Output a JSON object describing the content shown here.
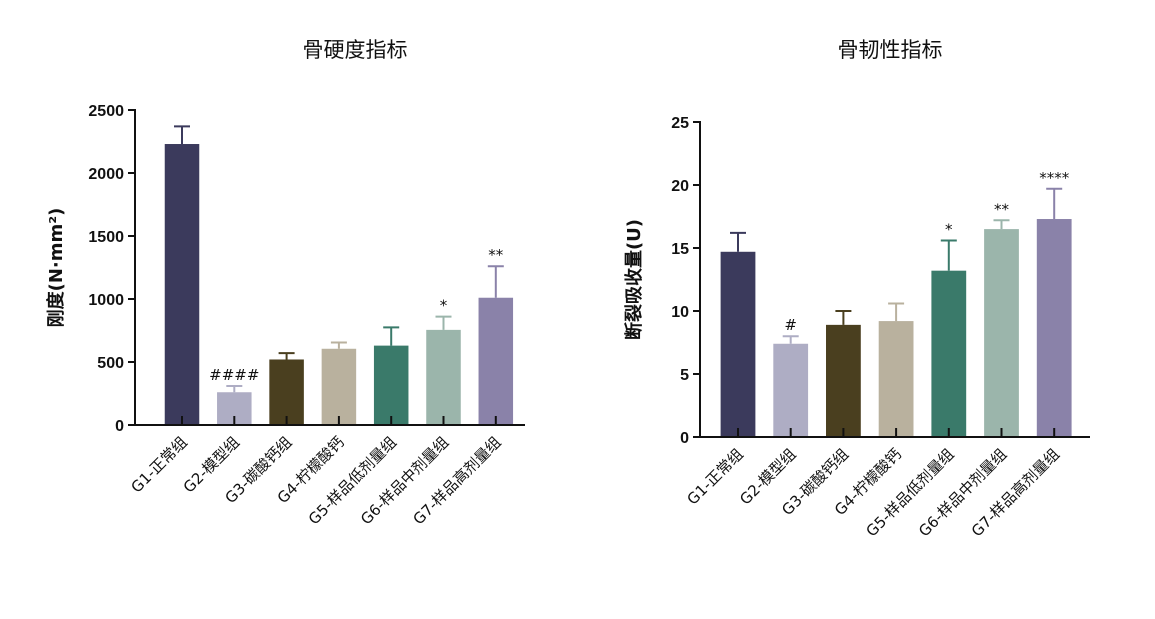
{
  "chart_data": [
    {
      "type": "bar",
      "title": "骨硬度指标",
      "ylabel": "刚度(N·mm²)",
      "categories": [
        "G1-正常组",
        "G2-模型组",
        "G3-碳酸钙组",
        "G4-柠檬酸钙",
        "G5-样品低剂量组",
        "G6-样品中剂量组",
        "G7-样品高剂量组"
      ],
      "values": [
        2230,
        260,
        520,
        605,
        630,
        755,
        1010
      ],
      "errors": [
        140,
        50,
        50,
        50,
        145,
        105,
        250
      ],
      "annotations": [
        null,
        "####",
        null,
        null,
        null,
        "*",
        "**"
      ],
      "colors": [
        "#3b3a5c",
        "#aeadc4",
        "#4a3f1f",
        "#b9b19e",
        "#3a7a6a",
        "#9bb5ab",
        "#8a82a9"
      ],
      "ylim": [
        0,
        2500
      ],
      "yticks": [
        0,
        500,
        1000,
        1500,
        2000,
        2500
      ]
    },
    {
      "type": "bar",
      "title": "骨韧性指标",
      "ylabel": "断裂吸收量(U)",
      "categories": [
        "G1-正常组",
        "G2-模型组",
        "G3-碳酸钙组",
        "G4-柠檬酸钙",
        "G5-样品低剂量组",
        "G6-样品中剂量组",
        "G7-样品高剂量组"
      ],
      "values": [
        14.7,
        7.4,
        8.9,
        9.2,
        13.2,
        16.5,
        17.3
      ],
      "errors": [
        1.5,
        0.6,
        1.1,
        1.4,
        2.4,
        0.7,
        2.4
      ],
      "annotations": [
        null,
        "#",
        null,
        null,
        "*",
        "**",
        "****"
      ],
      "colors": [
        "#3b3a5c",
        "#aeadc4",
        "#4a3f1f",
        "#b9b19e",
        "#3a7a6a",
        "#9bb5ab",
        "#8a82a9"
      ],
      "ylim": [
        0,
        25
      ],
      "yticks": [
        0,
        5,
        10,
        15,
        20,
        25
      ]
    }
  ]
}
